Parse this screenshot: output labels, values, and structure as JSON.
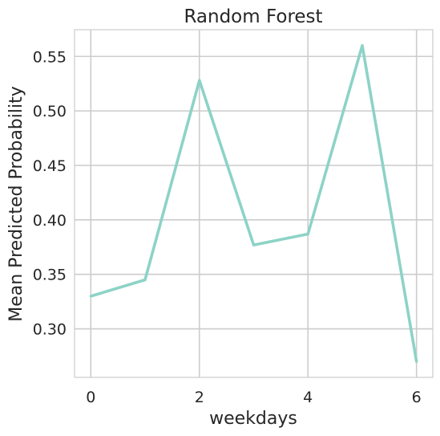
{
  "chart_data": {
    "type": "line",
    "title": "Random Forest",
    "xlabel": "weekdays",
    "ylabel": "Mean Predicted Probability",
    "x": [
      0,
      1,
      2,
      3,
      4,
      5,
      6
    ],
    "series": [
      {
        "values": [
          0.33,
          0.345,
          0.528,
          0.377,
          0.387,
          0.56,
          0.27
        ]
      }
    ],
    "xticks": [
      0,
      2,
      4,
      6
    ],
    "xtick_labels": [
      "0",
      "2",
      "4",
      "6"
    ],
    "yticks": [
      0.3,
      0.35,
      0.4,
      0.45,
      0.5,
      0.55
    ],
    "ytick_labels": [
      "0.30",
      "0.35",
      "0.40",
      "0.45",
      "0.50",
      "0.55"
    ],
    "xlim": [
      -0.3,
      6.3
    ],
    "ylim": [
      0.2555,
      0.5745
    ],
    "grid": true,
    "line_color": "#8dd3c7"
  }
}
